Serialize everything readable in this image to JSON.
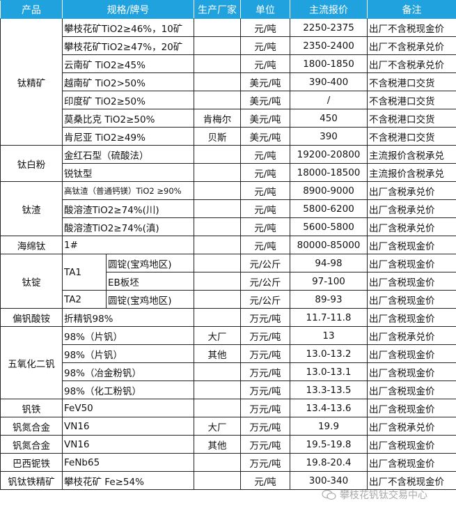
{
  "header": {
    "product": "产品",
    "spec": "规格/牌号",
    "maker": "生产厂家",
    "unit": "单位",
    "price": "主流报价",
    "note": "备注"
  },
  "colors": {
    "header_bg": "#1fa2de",
    "header_text": "#ffffff"
  },
  "groups": [
    {
      "product": "钛精矿",
      "rows": [
        {
          "spec": "攀枝花矿TiO2≥46%，10矿",
          "maker": "",
          "unit": "元/吨",
          "price": "2250-2375",
          "note": "出厂不含税现金价"
        },
        {
          "spec": "攀枝花矿TiO2≥47%，20矿",
          "maker": "",
          "unit": "元/吨",
          "price": "2350-2400",
          "note": "出厂不含税承兑价"
        },
        {
          "spec": "云南矿 TiO2≥45%",
          "maker": "",
          "unit": "元/吨",
          "price": "1800-1850",
          "note": "出厂不含税承兑价"
        },
        {
          "spec": "越南矿 TiO2>50%",
          "maker": "",
          "unit": "美元/吨",
          "price": "390-400",
          "note": "不含税港口交货"
        },
        {
          "spec": "印度矿 TiO2≥50%",
          "maker": "",
          "unit": "美元/吨",
          "price": "/",
          "note": "不含税港口交货"
        },
        {
          "spec": "莫桑比克 TiO2≥50%",
          "maker": "肯梅尔",
          "unit": "美元/吨",
          "price": "450",
          "note": "不含税港口交货"
        },
        {
          "spec": "肯尼亚 TiO2≥49%",
          "maker": "贝斯",
          "unit": "美元/吨",
          "price": "390",
          "note": "不含税港口交货"
        }
      ]
    },
    {
      "product": "钛白粉",
      "rows": [
        {
          "spec": "金红石型（硫酸法）",
          "maker": "",
          "unit": "元/吨",
          "price": "19200-20800",
          "note": "主流报价含税承兑"
        },
        {
          "spec": "锐钛型",
          "maker": "",
          "unit": "元/吨",
          "price": "18000-18500",
          "note": "主流报价含税承兑"
        }
      ]
    },
    {
      "product": "钛渣",
      "rows": [
        {
          "spec": "高钛渣（普通钙镁）TiO2 ≥90%",
          "maker": "",
          "unit": "元/吨",
          "price": "8900-9000",
          "note": "出厂含税承兑价"
        },
        {
          "spec": "酸溶渣TiO2≥74%(川)",
          "maker": "",
          "unit": "元/吨",
          "price": "5800-6200",
          "note": "出厂含税承兑价"
        },
        {
          "spec": "酸溶渣TiO2≥74%(滇)",
          "maker": "",
          "unit": "元/吨",
          "price": "5600-5800",
          "note": "出厂含税承兑价"
        }
      ]
    },
    {
      "product": "海绵钛",
      "rows": [
        {
          "spec": "1#",
          "maker": "",
          "unit": "元/吨",
          "price": "80000-85000",
          "note": "出厂含税现金价"
        }
      ]
    },
    {
      "product": "钛锭",
      "grades": [
        {
          "grade": "TA1",
          "rows": [
            {
              "spec": "圆锭(宝鸡地区)",
              "unit": "元/公斤",
              "price": "94-98",
              "note": "出厂含税现金价"
            },
            {
              "spec": "EB板坯",
              "unit": "元/公斤",
              "price": "97-100",
              "note": "出厂含税现金价"
            }
          ]
        },
        {
          "grade": "TA2",
          "rows": [
            {
              "spec": "圆锭(宝鸡地区)",
              "unit": "元/公斤",
              "price": "89-93",
              "note": "出厂含税现金价"
            }
          ]
        }
      ]
    },
    {
      "product": "偏钒酸铵",
      "rows": [
        {
          "spec": "折精钒98%",
          "maker": "",
          "unit": "万元/吨",
          "price": "11.7-11.8",
          "note": "出厂含税现金价"
        }
      ]
    },
    {
      "product": "五氧化二钒",
      "rows": [
        {
          "spec": "98%（片钒）",
          "maker": "大厂",
          "unit": "万元/吨",
          "price": "13",
          "note": "出厂含税承兑价"
        },
        {
          "spec": "98%（片钒）",
          "maker": "其他",
          "unit": "万元/吨",
          "price": "13.0-13.2",
          "note": "出厂含税现金价"
        },
        {
          "spec": "98%（冶金粉钒）",
          "maker": "",
          "unit": "万元/吨",
          "price": "13.0-13.1",
          "note": "出厂含税现金价"
        },
        {
          "spec": "98%（化工粉钒）",
          "maker": "",
          "unit": "万元/吨",
          "price": "13.3-13.5",
          "note": "出厂含税现金价"
        }
      ]
    },
    {
      "product": "钒铁",
      "rows": [
        {
          "spec": "FeV50",
          "maker": "",
          "unit": "万元/吨",
          "price": "13.4-13.6",
          "note": "出厂含税现金价"
        }
      ]
    },
    {
      "product": "钒氮合金",
      "rows": [
        {
          "spec": "VN16",
          "maker": "大厂",
          "unit": "万元/吨",
          "price": "19.9",
          "note": "出厂含税承兑价"
        }
      ]
    },
    {
      "product": "钒氮合金",
      "rows": [
        {
          "spec": "VN16",
          "maker": "其他",
          "unit": "万元/吨",
          "price": "19.5-19.8",
          "note": "出厂含税现金价"
        }
      ]
    },
    {
      "product": "巴西铌铁",
      "rows": [
        {
          "spec": "FeNb65",
          "maker": "",
          "unit": "万元/吨",
          "price": "19.8-20.4",
          "note": "出厂含税现金价"
        }
      ]
    },
    {
      "product": "钒钛铁精矿",
      "rows": [
        {
          "spec": "攀枝花矿 Fe≥54%",
          "maker": "",
          "unit": "元/吨",
          "price": "300-340",
          "note": "出厂不含税现金价"
        }
      ]
    }
  ],
  "watermark": {
    "text": "攀枝花钒钛交易中心",
    "icon": "wechat-icon"
  }
}
